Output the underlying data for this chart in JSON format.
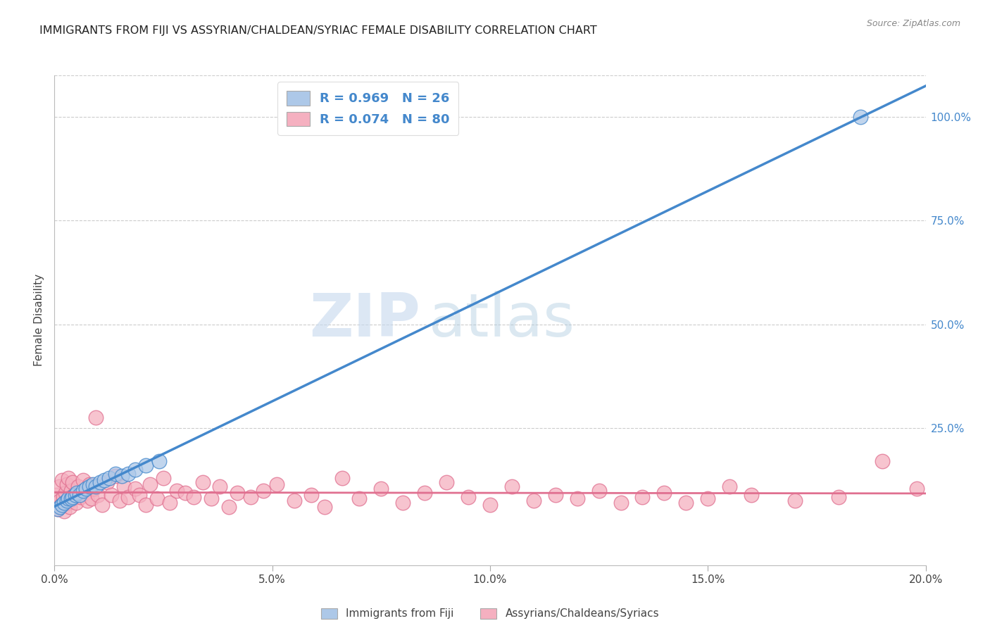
{
  "title": "IMMIGRANTS FROM FIJI VS ASSYRIAN/CHALDEAN/SYRIAC FEMALE DISABILITY CORRELATION CHART",
  "source": "Source: ZipAtlas.com",
  "ylabel": "Female Disability",
  "x_tick_labels": [
    "0.0%",
    "5.0%",
    "10.0%",
    "15.0%",
    "20.0%"
  ],
  "x_tick_positions": [
    0.0,
    5.0,
    10.0,
    15.0,
    20.0
  ],
  "y_tick_labels": [
    "100.0%",
    "75.0%",
    "50.0%",
    "25.0%"
  ],
  "y_tick_positions": [
    100.0,
    75.0,
    50.0,
    25.0
  ],
  "xlim": [
    0.0,
    20.0
  ],
  "ylim": [
    -8.0,
    110.0
  ],
  "series1_label": "Immigrants from Fiji",
  "series1_R": "0.969",
  "series1_N": "26",
  "series1_color": "#adc8e8",
  "series1_line_color": "#4488cc",
  "series2_label": "Assyrians/Chaldeans/Syriacs",
  "series2_R": "0.074",
  "series2_N": "80",
  "series2_color": "#f5b0c0",
  "series2_line_color": "#e07090",
  "watermark_zip": "ZIP",
  "watermark_atlas": "atlas",
  "background_color": "#ffffff",
  "grid_color": "#cccccc",
  "fiji_x": [
    0.08,
    0.12,
    0.18,
    0.22,
    0.28,
    0.32,
    0.38,
    0.42,
    0.48,
    0.52,
    0.58,
    0.65,
    0.72,
    0.8,
    0.88,
    0.95,
    1.05,
    1.15,
    1.25,
    1.4,
    1.55,
    1.7,
    1.85,
    2.1,
    2.4,
    18.5
  ],
  "fiji_y": [
    5.5,
    6.0,
    6.5,
    7.0,
    7.5,
    8.0,
    8.0,
    8.5,
    9.0,
    9.5,
    9.0,
    10.0,
    10.5,
    11.0,
    11.5,
    11.0,
    12.0,
    12.5,
    13.0,
    14.0,
    13.5,
    14.0,
    15.0,
    16.0,
    17.0,
    100.0
  ],
  "assyrian_x": [
    0.05,
    0.08,
    0.1,
    0.12,
    0.15,
    0.18,
    0.2,
    0.22,
    0.25,
    0.28,
    0.3,
    0.32,
    0.35,
    0.38,
    0.4,
    0.42,
    0.45,
    0.5,
    0.55,
    0.6,
    0.65,
    0.7,
    0.75,
    0.8,
    0.85,
    0.9,
    0.95,
    1.0,
    1.1,
    1.2,
    1.3,
    1.4,
    1.5,
    1.6,
    1.7,
    1.85,
    1.95,
    2.1,
    2.2,
    2.35,
    2.5,
    2.65,
    2.8,
    3.0,
    3.2,
    3.4,
    3.6,
    3.8,
    4.0,
    4.2,
    4.5,
    4.8,
    5.1,
    5.5,
    5.9,
    6.2,
    6.6,
    7.0,
    7.5,
    8.0,
    8.5,
    9.0,
    9.5,
    10.0,
    10.5,
    11.0,
    11.5,
    12.0,
    12.5,
    13.0,
    13.5,
    14.0,
    14.5,
    15.0,
    15.5,
    16.0,
    17.0,
    18.0,
    19.0,
    19.8
  ],
  "assyrian_y": [
    9.0,
    5.5,
    11.0,
    7.5,
    6.5,
    12.5,
    8.5,
    5.0,
    9.5,
    11.5,
    7.0,
    13.0,
    6.0,
    10.0,
    8.0,
    12.0,
    9.0,
    7.0,
    11.0,
    8.5,
    12.5,
    9.5,
    7.5,
    11.5,
    8.0,
    10.5,
    27.5,
    9.0,
    6.5,
    12.0,
    9.0,
    13.5,
    7.5,
    11.0,
    8.5,
    10.5,
    9.0,
    6.5,
    11.5,
    8.0,
    13.0,
    7.0,
    10.0,
    9.5,
    8.5,
    12.0,
    8.0,
    11.0,
    6.0,
    9.5,
    8.5,
    10.0,
    11.5,
    7.5,
    9.0,
    6.0,
    13.0,
    8.0,
    10.5,
    7.0,
    9.5,
    12.0,
    8.5,
    6.5,
    11.0,
    7.5,
    9.0,
    8.0,
    10.0,
    7.0,
    8.5,
    9.5,
    7.0,
    8.0,
    11.0,
    9.0,
    7.5,
    8.5,
    17.0,
    10.5
  ]
}
